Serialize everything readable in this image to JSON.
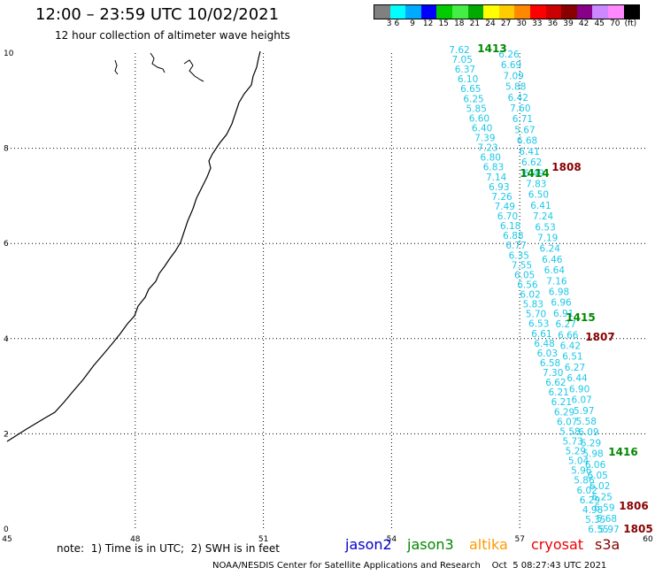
{
  "header": {
    "title": "12:00 – 23:59 UTC 10/02/2021",
    "subtitle": "12 hour collection of altimeter wave heights"
  },
  "legend": {
    "colors": [
      "#808080",
      "#00ffff",
      "#00aaff",
      "#0000ff",
      "#00cc00",
      "#44ee44",
      "#00aa00",
      "#ffff00",
      "#ffcc00",
      "#ff8800",
      "#ff0000",
      "#cc0000",
      "#880000",
      "#880088",
      "#cc88ff",
      "#ff88ff",
      "#000000"
    ],
    "labels": [
      "3",
      "6",
      "9",
      "12",
      "15",
      "18",
      "21",
      "24",
      "27",
      "30",
      "33",
      "36",
      "39",
      "42",
      "45",
      "70",
      "(ft)"
    ]
  },
  "axes": {
    "x_ticks": [
      "45",
      "48",
      "51",
      "54",
      "57",
      "60"
    ],
    "y_ticks": [
      "0",
      "2",
      "4",
      "6",
      "8",
      "10"
    ]
  },
  "satellites": {
    "jason2": {
      "label": "jason2",
      "color": "#0000cc"
    },
    "jason3": {
      "label": "jason3",
      "color": "#008800"
    },
    "altika": {
      "label": "altika",
      "color": "#ff9900"
    },
    "cryosat": {
      "label": "cryosat",
      "color": "#ee0000"
    },
    "s3a": {
      "label": "s3a",
      "color": "#880000"
    }
  },
  "pass_labels": [
    {
      "text": "1413",
      "sat": "jason3"
    },
    {
      "text": "1414",
      "sat": "jason3"
    },
    {
      "text": "1415",
      "sat": "jason3"
    },
    {
      "text": "1416",
      "sat": "jason3"
    },
    {
      "text": "1808",
      "sat": "s3a"
    },
    {
      "text": "1807",
      "sat": "s3a"
    },
    {
      "text": "1806",
      "sat": "s3a"
    },
    {
      "text": "1805",
      "sat": "s3a"
    }
  ],
  "track_a_values": [
    "7.62",
    "7.05",
    "6.37",
    "6.10",
    "6.65",
    "6.25",
    "5.85",
    "6.60",
    "6.40",
    "7.39",
    "7.23",
    "6.80",
    "6.83",
    "7.14",
    "6.93",
    "7.26",
    "7.49",
    "6.70",
    "6.18",
    "6.88",
    "6.77",
    "6.35",
    "7.55",
    "6.05",
    "6.56",
    "6.02",
    "5.83",
    "5.70",
    "6.53",
    "6.61",
    "6.48",
    "6.03",
    "6.58",
    "7.30",
    "6.62",
    "6.21",
    "6.21",
    "6.29",
    "6.07",
    "5.58",
    "5.73",
    "5.29",
    "5.04",
    "5.96",
    "5.86",
    "6.02",
    "6.29",
    "4.98",
    "5.35",
    "6.55"
  ],
  "track_b_values": [
    "6.26",
    "6.69",
    "7.09",
    "5.88",
    "6.42",
    "7.60",
    "6.71",
    "5.67",
    "6.68",
    "6.41",
    "6.62",
    "6.49",
    "7.83",
    "6.50",
    "6.41",
    "7.24",
    "6.53",
    "7.19",
    "6.24",
    "6.46",
    "6.64",
    "7.16",
    "6.98",
    "6.96",
    "6.91",
    "6.27",
    "6.66",
    "6.42",
    "6.51",
    "6.27",
    "6.44",
    "6.90",
    "6.07",
    "5.97",
    "5.58",
    "6.09",
    "6.29",
    "5.98",
    "6.06",
    "6.05",
    "6.02",
    "6.25",
    "6.59",
    "5.68",
    "5.97"
  ],
  "note": "note:  1) Time is in UTC;  2) SWH is in feet",
  "credit": "NOAA/NESDIS Center for Satellite Applications and Research    Oct  5 08:27:43 UTC 2021"
}
